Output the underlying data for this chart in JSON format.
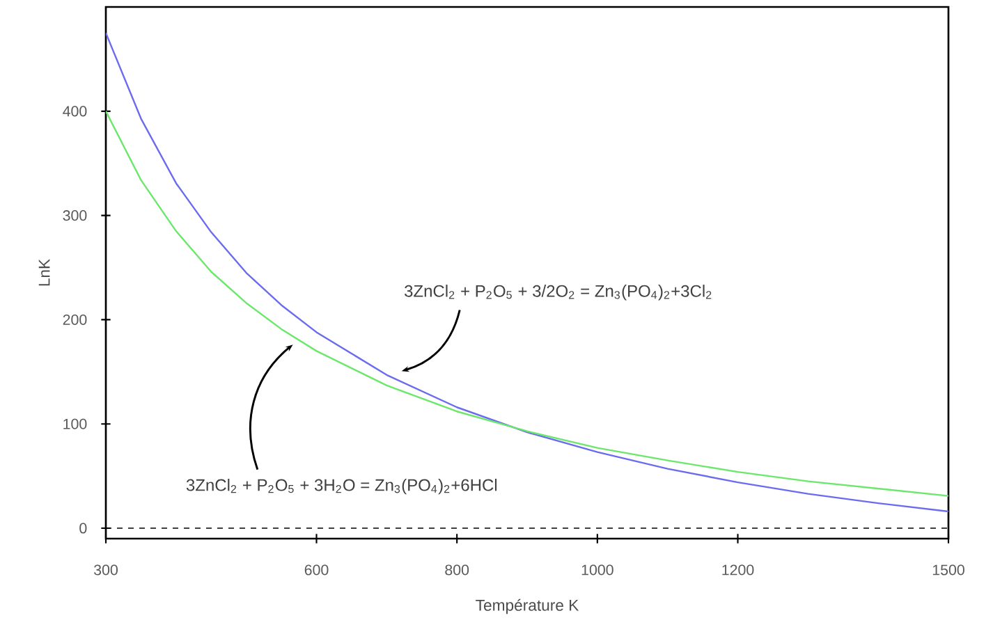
{
  "chart_data": {
    "type": "line",
    "xlabel": "Température K",
    "ylabel": "LnK",
    "x": [
      300,
      350,
      400,
      450,
      500,
      550,
      600,
      700,
      800,
      900,
      1000,
      1100,
      1200,
      1300,
      1400,
      1500
    ],
    "series": [
      {
        "color": "#6b6bf0",
        "values": [
          475,
          393,
          331,
          284,
          245,
          214,
          188,
          147,
          116,
          92,
          73,
          57,
          44,
          33,
          24,
          16
        ]
      },
      {
        "color": "#6be86b",
        "values": [
          400,
          334,
          285,
          246,
          216,
          191,
          170,
          137,
          112,
          93,
          77,
          65,
          54,
          45,
          38,
          31
        ]
      }
    ],
    "xlim": [
      300,
      1500
    ],
    "xticks": [
      300,
      600,
      800,
      1000,
      1200,
      1500
    ],
    "ylim": [
      -10,
      500
    ],
    "yticks": [
      0,
      100,
      200,
      300,
      400
    ],
    "ref_lines": [
      {
        "axis": "y",
        "value": 0,
        "color": "#000000",
        "line_style": "dashed"
      }
    ],
    "annotations": [
      "3ZnCl$_{2}$ + P$_{2}$O$_{5}$ + 3/2O$_{2}$ = Zn$_{3}$(PO$_{4}$)$_{2}$+3Cl$_{2}$",
      "3ZnCl$_{2}$ + P$_{2}$O$_{5}$ + 3H$_{2}$O = Zn$_{3}$(PO$_{4}$)$_{2}$+6HCl"
    ],
    "line_style": "solid"
  }
}
